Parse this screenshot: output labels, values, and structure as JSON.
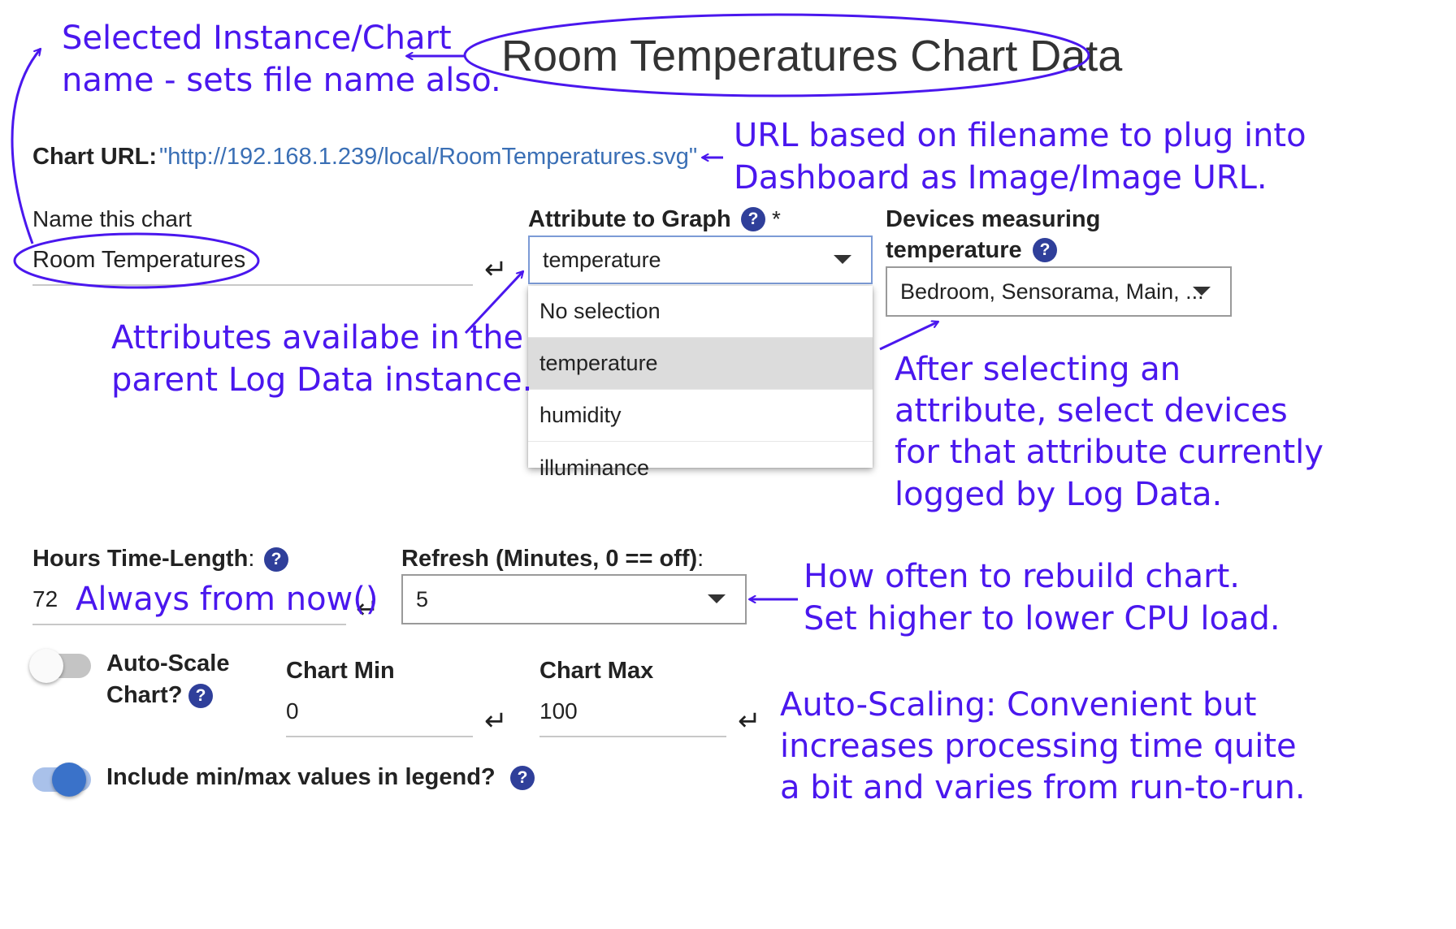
{
  "page": {
    "title": "Room Temperatures Chart Data",
    "chart_url_label": "Chart URL:",
    "chart_url": "\"http://192.168.1.239/local/RoomTemperatures.svg\""
  },
  "name_field": {
    "label": "Name this chart",
    "value": "Room Temperatures"
  },
  "attribute_field": {
    "label": "Attribute to Graph",
    "required_mark": "*",
    "value": "temperature",
    "options": [
      "No selection",
      "temperature",
      "humidity",
      "illuminance"
    ],
    "selected_index": 1
  },
  "devices_field": {
    "label_line1": "Devices measuring",
    "label_line2": "temperature",
    "value": "Bedroom, Sensorama, Main, ..."
  },
  "hours_field": {
    "label": "Hours Time-Length",
    "label_suffix": ":",
    "value": "72"
  },
  "refresh_field": {
    "label": "Refresh (Minutes, 0 == off)",
    "label_suffix": ":",
    "value": "5"
  },
  "autoscale": {
    "label_line1": "Auto-Scale",
    "label_line2": "Chart?",
    "enabled": false
  },
  "chart_min": {
    "label": "Chart Min",
    "value": "0"
  },
  "chart_max": {
    "label": "Chart Max",
    "value": "100"
  },
  "legend_minmax": {
    "label": "Include min/max values in legend?",
    "enabled": true
  },
  "help_glyph": "?",
  "enter_glyph": "↵",
  "annotations": {
    "instance_name": [
      "Selected Instance/Chart",
      "name - sets file name also."
    ],
    "url": [
      "URL based on filename to plug into",
      "Dashboard as Image/Image URL."
    ],
    "attributes": [
      "Attributes availabe in the",
      "parent Log Data instance."
    ],
    "devices": [
      "After selecting an",
      "attribute, select devices",
      "for that attribute currently",
      "logged by Log Data."
    ],
    "now": "Always from now()",
    "refresh": [
      "How often to rebuild chart.",
      "Set higher to lower CPU load."
    ],
    "autoscale": [
      "Auto-Scaling: Convenient but",
      "increases processing time quite",
      "a bit and varies from run-to-run."
    ]
  },
  "colors": {
    "annotation": "#4a17ee",
    "link": "#3a6fb5",
    "help_badge": "#2f3f9a",
    "toggle_on": "#3a72c9",
    "toggle_on_track": "#a9c1ea",
    "menu_selected": "#dcdcdc"
  }
}
